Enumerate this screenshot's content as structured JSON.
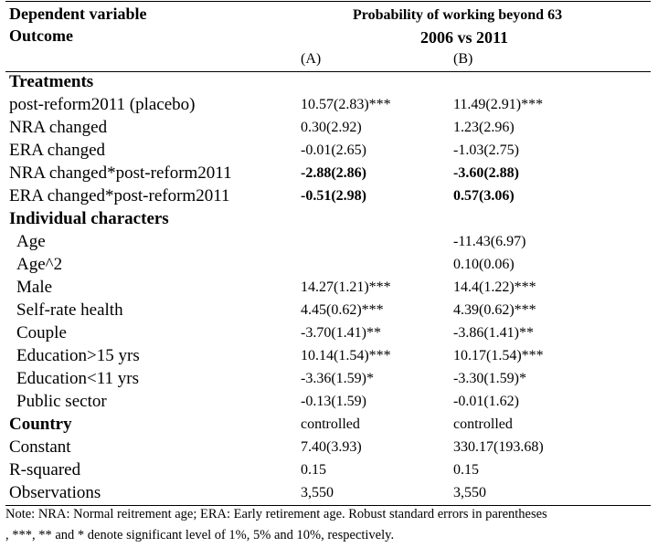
{
  "header": {
    "dep_label": "Dependent variable",
    "outcome_label": "Outcome",
    "title": "Probability of working beyond 63",
    "subtitle": "2006 vs 2011",
    "col_a": "(A)",
    "col_b": "(B)"
  },
  "sections": {
    "treatments": "Treatments",
    "individual": "Individual characters",
    "country": "Country"
  },
  "rows": {
    "r1": {
      "label": "post-reform2011 (placebo)",
      "a": "10.57(2.83)***",
      "b": "11.49(2.91)***"
    },
    "r2": {
      "label": "NRA changed",
      "a": "0.30(2.92)",
      "b": "1.23(2.96)"
    },
    "r3": {
      "label": "ERA changed",
      "a": "-0.01(2.65)",
      "b": "-1.03(2.75)"
    },
    "r4": {
      "label": "NRA changed*post-reform2011",
      "a": "-2.88(2.86)",
      "b": "-3.60(2.88)"
    },
    "r5": {
      "label": "ERA changed*post-reform2011",
      "a": "-0.51(2.98)",
      "b": "0.57(3.06)"
    },
    "r6": {
      "label": "Age",
      "a": "",
      "b": "-11.43(6.97)"
    },
    "r7": {
      "label": "Age^2",
      "a": "",
      "b": "0.10(0.06)"
    },
    "r8": {
      "label": "Male",
      "a": "14.27(1.21)***",
      "b": "14.4(1.22)***"
    },
    "r9": {
      "label": "Self-rate health",
      "a": "4.45(0.62)***",
      "b": "4.39(0.62)***"
    },
    "r10": {
      "label": "Couple",
      "a": "-3.70(1.41)**",
      "b": "-3.86(1.41)**"
    },
    "r11": {
      "label": "Education>15 yrs",
      "a": "10.14(1.54)***",
      "b": "10.17(1.54)***"
    },
    "r12": {
      "label": "Education<11 yrs",
      "a": "-3.36(1.59)*",
      "b": "-3.30(1.59)*"
    },
    "r13": {
      "label": "Public sector",
      "a": "-0.13(1.59)",
      "b": "-0.01(1.62)"
    },
    "r14": {
      "label": "",
      "a": "controlled",
      "b": "controlled"
    },
    "r15": {
      "label": "Constant",
      "a": "7.40(3.93)",
      "b": "330.17(193.68)"
    },
    "r16": {
      "label": "R-squared",
      "a": "0.15",
      "b": "0.15"
    },
    "r17": {
      "label": "Observations",
      "a": "3,550",
      "b": "3,550"
    }
  },
  "note": {
    "line1": "Note: NRA: Normal reitrement age; ERA: Early retirement age. Robust standard errors in parentheses",
    "line2": ", ***, ** and * denote significant level of 1%, 5% and 10%, respectively."
  }
}
